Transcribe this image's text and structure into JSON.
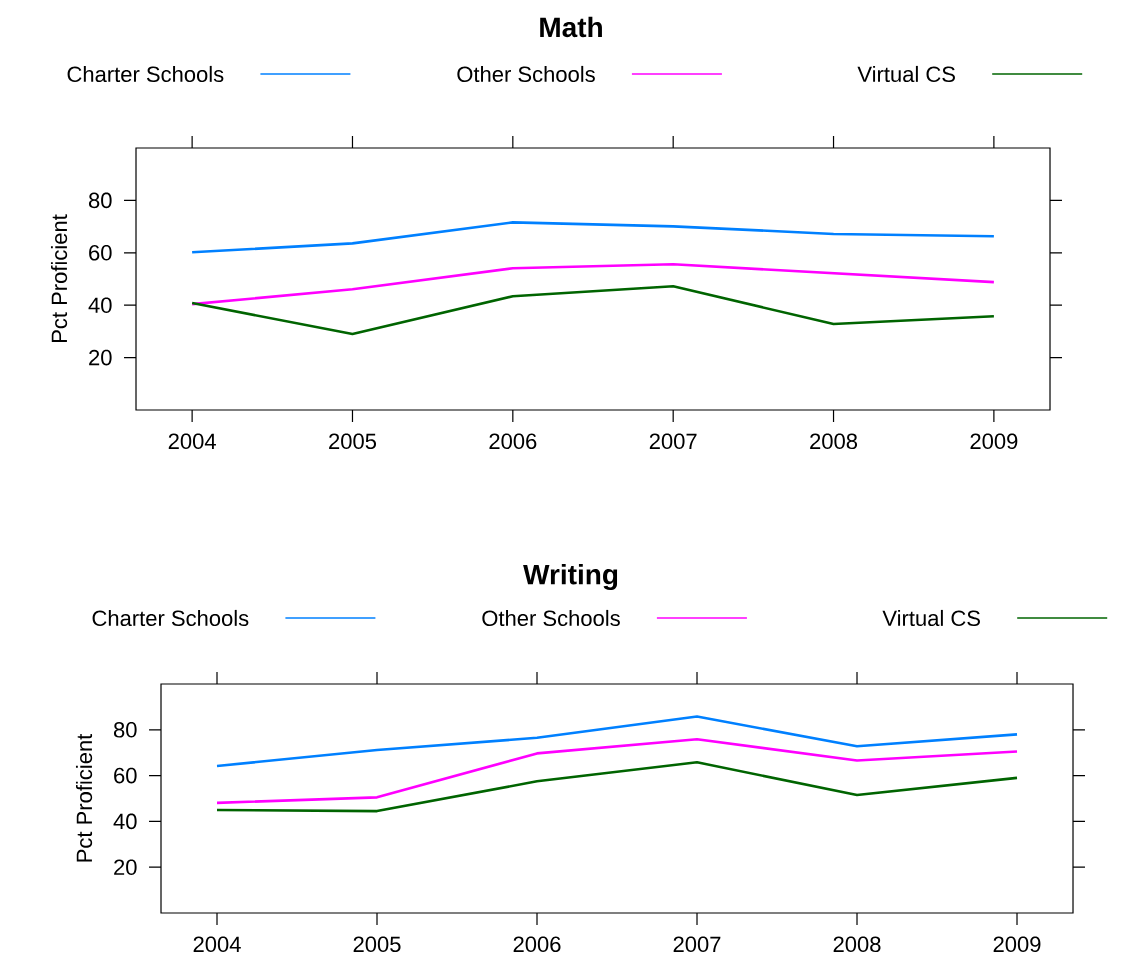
{
  "chart_data": [
    {
      "type": "line",
      "title": "Math",
      "ylabel": "Pct Proficient",
      "x": [
        2004,
        2005,
        2006,
        2007,
        2008,
        2009
      ],
      "xlim": [
        2003.65,
        2009.35
      ],
      "xticks": [
        2004,
        2005,
        2006,
        2007,
        2008,
        2009
      ],
      "ylim": [
        0,
        100
      ],
      "yticks": [
        20,
        40,
        60,
        80
      ],
      "grid": false,
      "legend": "top",
      "marker": "none",
      "line_style": "solid",
      "series": [
        {
          "name": "Charter Schools",
          "color": "#0080ff",
          "values": [
            60.2,
            63.6,
            71.6,
            70.1,
            67.2,
            66.3
          ]
        },
        {
          "name": "Other Schools",
          "color": "#ff00ff",
          "values": [
            40.4,
            46.1,
            54.1,
            55.6,
            52.2,
            48.8
          ]
        },
        {
          "name": "Virtual CS",
          "color": "#006400",
          "values": [
            40.8,
            29.0,
            43.4,
            47.2,
            32.8,
            35.8
          ]
        }
      ]
    },
    {
      "type": "line",
      "title": "Writing",
      "ylabel": "Pct Proficient",
      "x": [
        2004,
        2005,
        2006,
        2007,
        2008,
        2009
      ],
      "xlim": [
        2003.65,
        2009.35
      ],
      "xticks": [
        2004,
        2005,
        2006,
        2007,
        2008,
        2009
      ],
      "ylim": [
        0,
        100
      ],
      "yticks": [
        20,
        40,
        60,
        80
      ],
      "grid": false,
      "legend": "top",
      "marker": "none",
      "line_style": "solid",
      "series": [
        {
          "name": "Charter Schools",
          "color": "#0080ff",
          "values": [
            64.2,
            71.2,
            76.5,
            85.8,
            72.8,
            78.0
          ]
        },
        {
          "name": "Other Schools",
          "color": "#ff00ff",
          "values": [
            48.1,
            50.5,
            69.7,
            75.9,
            66.6,
            70.5
          ]
        },
        {
          "name": "Virtual CS",
          "color": "#006400",
          "values": [
            45.0,
            44.5,
            57.5,
            65.8,
            51.5,
            59.0
          ]
        }
      ]
    }
  ]
}
